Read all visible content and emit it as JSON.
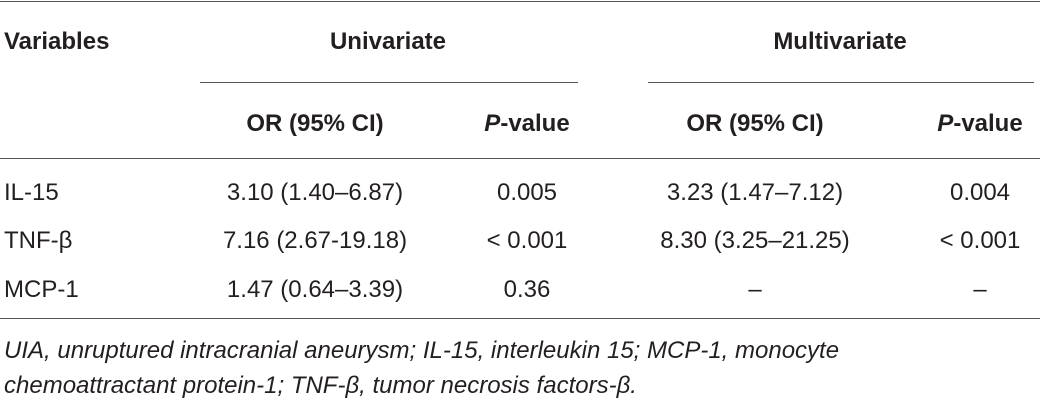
{
  "table": {
    "header": {
      "variables": "Variables",
      "groups": [
        "Univariate",
        "Multivariate"
      ]
    },
    "subheaders": [
      {
        "text": "OR (95% CI)"
      },
      {
        "italic": "P",
        "text": "-value"
      },
      {
        "text": "OR (95% CI)"
      },
      {
        "italic": "P",
        "text": "-value"
      }
    ],
    "rows": [
      [
        "IL-15",
        "3.10 (1.40–6.87)",
        "0.005",
        "3.23 (1.47–7.12)",
        "0.004"
      ],
      [
        "TNF-β",
        "7.16 (2.67-19.18)",
        "< 0.001",
        "8.30 (3.25–21.25)",
        "< 0.001"
      ],
      [
        "MCP-1",
        "1.47 (0.64–3.39)",
        "0.36",
        "–",
        "–"
      ]
    ]
  },
  "footnote": [
    "UIA, unruptured intracranial aneurysm; IL-15, interleukin 15; MCP-1, monocyte",
    "chemoattractant protein-1; TNF-β, tumor necrosis factors-β."
  ]
}
